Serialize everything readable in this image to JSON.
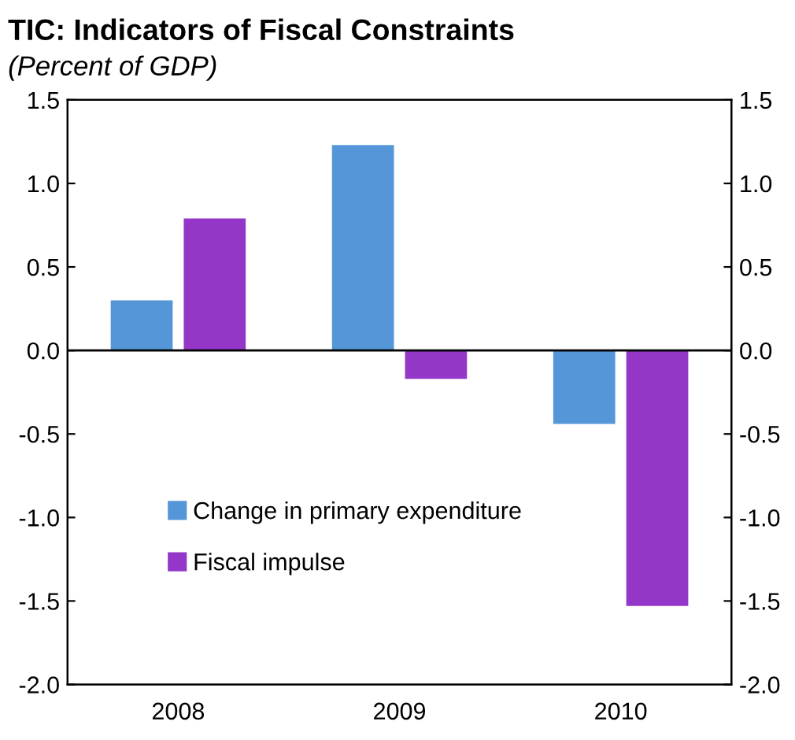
{
  "chart_data": {
    "type": "bar",
    "title": "TIC: Indicators of Fiscal Constraints",
    "subtitle": "(Percent of GDP)",
    "categories": [
      "2008",
      "2009",
      "2010"
    ],
    "series": [
      {
        "name": "Change in primary expenditure",
        "color": "#5596d8",
        "values": [
          0.3,
          1.23,
          -0.44
        ]
      },
      {
        "name": "Fiscal impulse",
        "color": "#9437c8",
        "values": [
          0.79,
          -0.17,
          -1.53
        ]
      }
    ],
    "ylim": [
      -2.0,
      1.5
    ],
    "yticks": [
      {
        "value": -2.0,
        "label": "-2.0"
      },
      {
        "value": -1.5,
        "label": "-1.5"
      },
      {
        "value": -1.0,
        "label": "-1.0"
      },
      {
        "value": -0.5,
        "label": "-0.5"
      },
      {
        "value": 0.0,
        "label": "0.0"
      },
      {
        "value": 0.5,
        "label": "0.5"
      },
      {
        "value": 1.0,
        "label": "1.0"
      },
      {
        "value": 1.5,
        "label": "1.5"
      }
    ],
    "y2lim": [
      -2.0,
      1.5
    ],
    "y2ticks": [
      {
        "value": -2.0,
        "label": "-2.0"
      },
      {
        "value": -1.5,
        "label": "-1.5"
      },
      {
        "value": -1.0,
        "label": "-1.0"
      },
      {
        "value": -0.5,
        "label": "-0.5"
      },
      {
        "value": 0.0,
        "label": "0.0"
      },
      {
        "value": 0.5,
        "label": "0.5"
      },
      {
        "value": 1.0,
        "label": "1.0"
      },
      {
        "value": 1.5,
        "label": "1.5"
      }
    ],
    "ref_lines": [
      {
        "axis": "y",
        "value": 0.0,
        "color": "#000000"
      }
    ],
    "grid": false,
    "legend": "bottom left"
  }
}
